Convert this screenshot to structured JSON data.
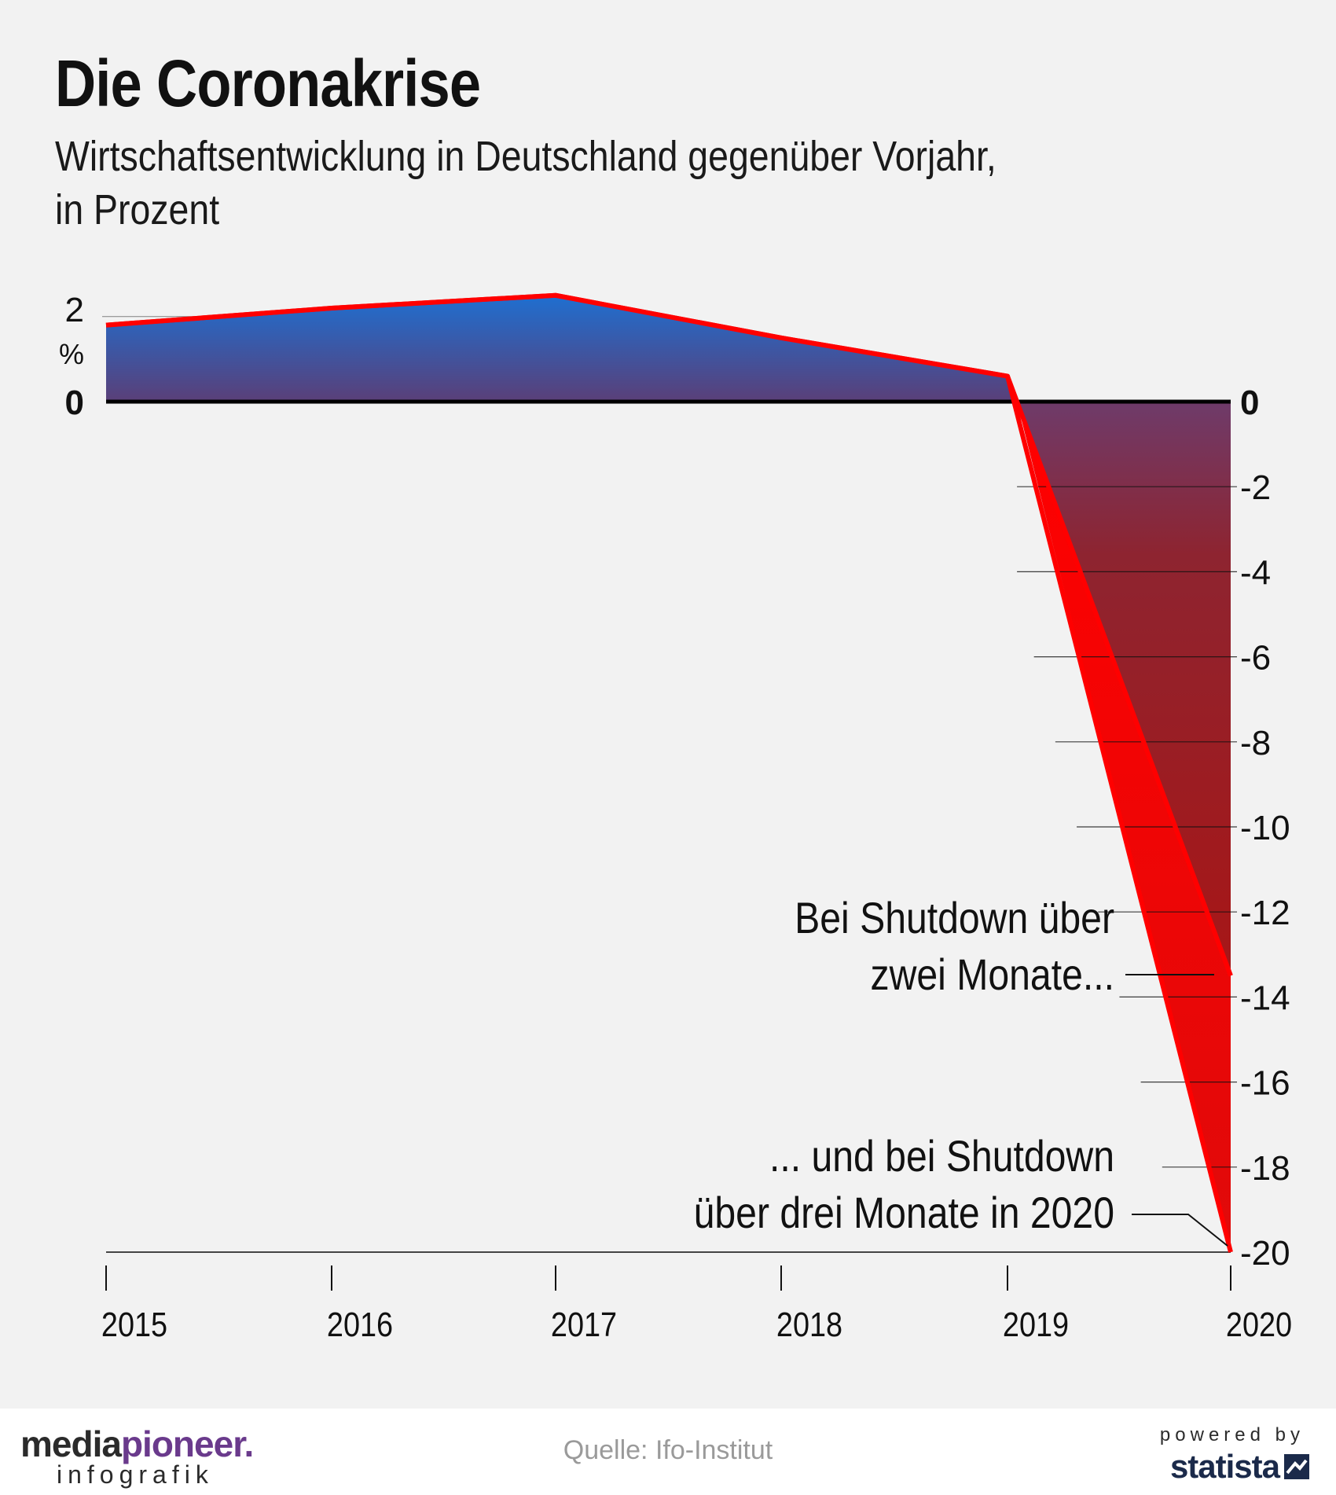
{
  "title": "Die Coronakrise",
  "subtitle_line1": "Wirtschaftsentwicklung in Deutschland gegenüber Vorjahr,",
  "subtitle_line2": "in Prozent",
  "colors": {
    "line": "#ff0000",
    "area_positive": "#1f6fd0",
    "area_negative": "#a01515",
    "triangle": "#ff0000",
    "background": "#f2f2f2"
  },
  "chart_data": {
    "type": "area",
    "title": "Die Coronakrise",
    "subtitle": "Wirtschaftsentwicklung in Deutschland gegenüber Vorjahr, in Prozent",
    "xlabel": "",
    "ylabel": "%",
    "ylim": [
      -20,
      2
    ],
    "categories": [
      "2015",
      "2016",
      "2017",
      "2018",
      "2019",
      "2020"
    ],
    "series": [
      {
        "name": "Bei Shutdown über zwei Monate...",
        "values": [
          1.8,
          2.2,
          2.5,
          1.5,
          0.6,
          -13.5
        ]
      },
      {
        "name": "... und bei Shutdown über drei Monate in 2020",
        "values": [
          1.8,
          2.2,
          2.5,
          1.5,
          0.6,
          -20
        ]
      }
    ],
    "left_ticks": [
      "2",
      "0"
    ],
    "left_unit": "%",
    "right_ticks": [
      "0",
      "-2",
      "-4",
      "-6",
      "-8",
      "-10",
      "-12",
      "-14",
      "-16",
      "-18",
      "-20"
    ],
    "right_tick_values": [
      0,
      -2,
      -4,
      -6,
      -8,
      -10,
      -12,
      -14,
      -16,
      -18,
      -20
    ],
    "annotations": [
      {
        "lines": [
          "Bei Shutdown über",
          "zwei Monate..."
        ],
        "value": -13.5
      },
      {
        "lines": [
          "... und bei Shutdown",
          "über drei Monate in 2020"
        ],
        "value": -20
      }
    ]
  },
  "footer": {
    "brand_part1": "media",
    "brand_part2": "pioneer.",
    "brand_sub": "infografik",
    "source": "Quelle: Ifo-Institut",
    "powered_by": "powered by",
    "statista": "statista"
  }
}
